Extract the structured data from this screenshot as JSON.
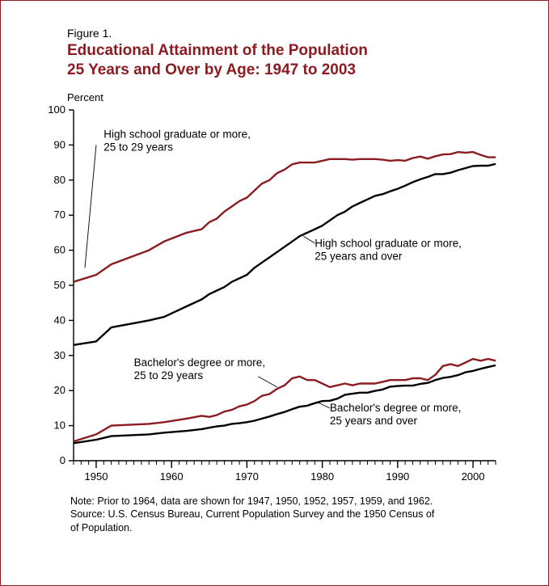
{
  "figure_label": "Figure 1.",
  "title_line1": "Educational Attainment of the Population",
  "title_line2": "25 Years and Over by Age:  1947 to 2003",
  "y_axis_label": "Percent",
  "note_line1": "Note:  Prior to 1964, data are shown for 1947, 1950, 1952, 1957, 1959, and 1962.",
  "note_line2": "Source:  U.S. Census Bureau, Current Population Survey and the 1950 Census of",
  "note_line3": "of Population.",
  "chart": {
    "type": "line",
    "background_color": "#ffffff",
    "frame_border_color": "#8a1c22",
    "axis_color": "#000000",
    "axis_line_width": 1.4,
    "label_fontsize": 13.5,
    "tick_fontsize": 13,
    "title_color": "#8a1c22",
    "title_fontsize": 19,
    "xlim": [
      1947,
      2003
    ],
    "ylim": [
      0,
      100
    ],
    "yticks": [
      0,
      10,
      20,
      30,
      40,
      50,
      60,
      70,
      80,
      90,
      100
    ],
    "xticks_major": [
      1950,
      1960,
      1970,
      1980,
      1990,
      2000
    ],
    "xticks_minor_step": 1,
    "series": [
      {
        "id": "hs_25_29",
        "label_line1": "High school graduate or more,",
        "label_line2": "25 to 29 years",
        "color": "#8a1c22",
        "line_width": 2.4,
        "label_pos": {
          "x": 1951,
          "y": 92
        },
        "leader": {
          "from": {
            "x": 1950,
            "y": 90
          },
          "to": {
            "x": 1948.5,
            "y": 55
          }
        },
        "data": [
          {
            "x": 1947,
            "y": 51
          },
          {
            "x": 1950,
            "y": 53
          },
          {
            "x": 1952,
            "y": 56
          },
          {
            "x": 1957,
            "y": 60
          },
          {
            "x": 1959,
            "y": 62.5
          },
          {
            "x": 1962,
            "y": 65
          },
          {
            "x": 1964,
            "y": 66
          },
          {
            "x": 1965,
            "y": 68
          },
          {
            "x": 1966,
            "y": 69
          },
          {
            "x": 1967,
            "y": 71
          },
          {
            "x": 1968,
            "y": 72.5
          },
          {
            "x": 1969,
            "y": 74
          },
          {
            "x": 1970,
            "y": 75
          },
          {
            "x": 1971,
            "y": 77
          },
          {
            "x": 1972,
            "y": 79
          },
          {
            "x": 1973,
            "y": 80
          },
          {
            "x": 1974,
            "y": 82
          },
          {
            "x": 1975,
            "y": 83
          },
          {
            "x": 1976,
            "y": 84.5
          },
          {
            "x": 1977,
            "y": 85
          },
          {
            "x": 1978,
            "y": 85
          },
          {
            "x": 1979,
            "y": 85
          },
          {
            "x": 1980,
            "y": 85.5
          },
          {
            "x": 1981,
            "y": 86
          },
          {
            "x": 1982,
            "y": 86
          },
          {
            "x": 1983,
            "y": 86
          },
          {
            "x": 1984,
            "y": 85.8
          },
          {
            "x": 1985,
            "y": 86
          },
          {
            "x": 1986,
            "y": 86
          },
          {
            "x": 1987,
            "y": 86
          },
          {
            "x": 1988,
            "y": 85.8
          },
          {
            "x": 1989,
            "y": 85.5
          },
          {
            "x": 1990,
            "y": 85.7
          },
          {
            "x": 1991,
            "y": 85.5
          },
          {
            "x": 1992,
            "y": 86.3
          },
          {
            "x": 1993,
            "y": 86.7
          },
          {
            "x": 1994,
            "y": 86.1
          },
          {
            "x": 1995,
            "y": 86.8
          },
          {
            "x": 1996,
            "y": 87.3
          },
          {
            "x": 1997,
            "y": 87.4
          },
          {
            "x": 1998,
            "y": 88
          },
          {
            "x": 1999,
            "y": 87.8
          },
          {
            "x": 2000,
            "y": 88
          },
          {
            "x": 2001,
            "y": 87.2
          },
          {
            "x": 2002,
            "y": 86.5
          },
          {
            "x": 2003,
            "y": 86.5
          }
        ]
      },
      {
        "id": "hs_25_over",
        "label_line1": "High school graduate or more,",
        "label_line2": "25 years and over",
        "color": "#000000",
        "line_width": 2.4,
        "label_pos": {
          "x": 1979,
          "y": 61
        },
        "leader": {
          "from": {
            "x": 1979,
            "y": 62
          },
          "to": {
            "x": 1977.5,
            "y": 64
          }
        },
        "data": [
          {
            "x": 1947,
            "y": 33
          },
          {
            "x": 1950,
            "y": 34
          },
          {
            "x": 1952,
            "y": 38
          },
          {
            "x": 1957,
            "y": 40
          },
          {
            "x": 1959,
            "y": 41
          },
          {
            "x": 1962,
            "y": 44
          },
          {
            "x": 1964,
            "y": 46
          },
          {
            "x": 1965,
            "y": 47.5
          },
          {
            "x": 1966,
            "y": 48.5
          },
          {
            "x": 1967,
            "y": 49.5
          },
          {
            "x": 1968,
            "y": 51
          },
          {
            "x": 1969,
            "y": 52
          },
          {
            "x": 1970,
            "y": 53
          },
          {
            "x": 1971,
            "y": 55
          },
          {
            "x": 1972,
            "y": 56.5
          },
          {
            "x": 1973,
            "y": 58
          },
          {
            "x": 1974,
            "y": 59.5
          },
          {
            "x": 1975,
            "y": 61
          },
          {
            "x": 1976,
            "y": 62.5
          },
          {
            "x": 1977,
            "y": 64
          },
          {
            "x": 1978,
            "y": 65
          },
          {
            "x": 1979,
            "y": 66
          },
          {
            "x": 1980,
            "y": 67
          },
          {
            "x": 1981,
            "y": 68.5
          },
          {
            "x": 1982,
            "y": 70
          },
          {
            "x": 1983,
            "y": 71
          },
          {
            "x": 1984,
            "y": 72.5
          },
          {
            "x": 1985,
            "y": 73.5
          },
          {
            "x": 1986,
            "y": 74.5
          },
          {
            "x": 1987,
            "y": 75.5
          },
          {
            "x": 1988,
            "y": 76
          },
          {
            "x": 1989,
            "y": 76.8
          },
          {
            "x": 1990,
            "y": 77.5
          },
          {
            "x": 1991,
            "y": 78.4
          },
          {
            "x": 1992,
            "y": 79.4
          },
          {
            "x": 1993,
            "y": 80.2
          },
          {
            "x": 1994,
            "y": 80.9
          },
          {
            "x": 1995,
            "y": 81.7
          },
          {
            "x": 1996,
            "y": 81.7
          },
          {
            "x": 1997,
            "y": 82.1
          },
          {
            "x": 1998,
            "y": 82.8
          },
          {
            "x": 1999,
            "y": 83.4
          },
          {
            "x": 2000,
            "y": 84
          },
          {
            "x": 2001,
            "y": 84.1
          },
          {
            "x": 2002,
            "y": 84.1
          },
          {
            "x": 2003,
            "y": 84.6
          }
        ]
      },
      {
        "id": "ba_25_29",
        "label_line1": "Bachelor's degree or more,",
        "label_line2": "25 to 29 years",
        "color": "#8a1c22",
        "line_width": 2.4,
        "label_pos": {
          "x": 1955,
          "y": 27
        },
        "leader": {
          "from": {
            "x": 1971.5,
            "y": 24
          },
          "to": {
            "x": 1974,
            "y": 21
          }
        },
        "data": [
          {
            "x": 1947,
            "y": 5.5
          },
          {
            "x": 1950,
            "y": 7.5
          },
          {
            "x": 1952,
            "y": 10
          },
          {
            "x": 1957,
            "y": 10.5
          },
          {
            "x": 1959,
            "y": 11
          },
          {
            "x": 1962,
            "y": 12
          },
          {
            "x": 1964,
            "y": 12.8
          },
          {
            "x": 1965,
            "y": 12.5
          },
          {
            "x": 1966,
            "y": 13
          },
          {
            "x": 1967,
            "y": 14
          },
          {
            "x": 1968,
            "y": 14.5
          },
          {
            "x": 1969,
            "y": 15.5
          },
          {
            "x": 1970,
            "y": 16
          },
          {
            "x": 1971,
            "y": 17
          },
          {
            "x": 1972,
            "y": 18.5
          },
          {
            "x": 1973,
            "y": 19
          },
          {
            "x": 1974,
            "y": 20.5
          },
          {
            "x": 1975,
            "y": 21.5
          },
          {
            "x": 1976,
            "y": 23.5
          },
          {
            "x": 1977,
            "y": 24
          },
          {
            "x": 1978,
            "y": 23
          },
          {
            "x": 1979,
            "y": 23
          },
          {
            "x": 1980,
            "y": 22
          },
          {
            "x": 1981,
            "y": 21
          },
          {
            "x": 1982,
            "y": 21.5
          },
          {
            "x": 1983,
            "y": 22
          },
          {
            "x": 1984,
            "y": 21.5
          },
          {
            "x": 1985,
            "y": 22
          },
          {
            "x": 1986,
            "y": 22
          },
          {
            "x": 1987,
            "y": 22
          },
          {
            "x": 1988,
            "y": 22.5
          },
          {
            "x": 1989,
            "y": 23
          },
          {
            "x": 1990,
            "y": 23
          },
          {
            "x": 1991,
            "y": 23
          },
          {
            "x": 1992,
            "y": 23.5
          },
          {
            "x": 1993,
            "y": 23.5
          },
          {
            "x": 1994,
            "y": 23
          },
          {
            "x": 1995,
            "y": 24.5
          },
          {
            "x": 1996,
            "y": 27
          },
          {
            "x": 1997,
            "y": 27.5
          },
          {
            "x": 1998,
            "y": 27
          },
          {
            "x": 1999,
            "y": 28
          },
          {
            "x": 2000,
            "y": 29
          },
          {
            "x": 2001,
            "y": 28.5
          },
          {
            "x": 2002,
            "y": 29
          },
          {
            "x": 2003,
            "y": 28.5
          }
        ]
      },
      {
        "id": "ba_25_over",
        "label_line1": "Bachelor's degree or more,",
        "label_line2": "25 years and over",
        "color": "#000000",
        "line_width": 2.4,
        "label_pos": {
          "x": 1981,
          "y": 14
        },
        "leader": {
          "from": {
            "x": 1981,
            "y": 15
          },
          "to": {
            "x": 1979.5,
            "y": 16.5
          }
        },
        "data": [
          {
            "x": 1947,
            "y": 5
          },
          {
            "x": 1950,
            "y": 6
          },
          {
            "x": 1952,
            "y": 7
          },
          {
            "x": 1957,
            "y": 7.5
          },
          {
            "x": 1959,
            "y": 8
          },
          {
            "x": 1962,
            "y": 8.5
          },
          {
            "x": 1964,
            "y": 9
          },
          {
            "x": 1965,
            "y": 9.4
          },
          {
            "x": 1966,
            "y": 9.8
          },
          {
            "x": 1967,
            "y": 10
          },
          {
            "x": 1968,
            "y": 10.5
          },
          {
            "x": 1969,
            "y": 10.7
          },
          {
            "x": 1970,
            "y": 11
          },
          {
            "x": 1971,
            "y": 11.4
          },
          {
            "x": 1972,
            "y": 12
          },
          {
            "x": 1973,
            "y": 12.6
          },
          {
            "x": 1974,
            "y": 13.3
          },
          {
            "x": 1975,
            "y": 13.9
          },
          {
            "x": 1976,
            "y": 14.7
          },
          {
            "x": 1977,
            "y": 15.4
          },
          {
            "x": 1978,
            "y": 15.7
          },
          {
            "x": 1979,
            "y": 16.4
          },
          {
            "x": 1980,
            "y": 17
          },
          {
            "x": 1981,
            "y": 17.1
          },
          {
            "x": 1982,
            "y": 17.7
          },
          {
            "x": 1983,
            "y": 18.8
          },
          {
            "x": 1984,
            "y": 19.1
          },
          {
            "x": 1985,
            "y": 19.4
          },
          {
            "x": 1986,
            "y": 19.4
          },
          {
            "x": 1987,
            "y": 19.9
          },
          {
            "x": 1988,
            "y": 20.3
          },
          {
            "x": 1989,
            "y": 21.1
          },
          {
            "x": 1990,
            "y": 21.3
          },
          {
            "x": 1991,
            "y": 21.4
          },
          {
            "x": 1992,
            "y": 21.4
          },
          {
            "x": 1993,
            "y": 21.9
          },
          {
            "x": 1994,
            "y": 22.2
          },
          {
            "x": 1995,
            "y": 23
          },
          {
            "x": 1996,
            "y": 23.6
          },
          {
            "x": 1997,
            "y": 23.9
          },
          {
            "x": 1998,
            "y": 24.4
          },
          {
            "x": 1999,
            "y": 25.2
          },
          {
            "x": 2000,
            "y": 25.6
          },
          {
            "x": 2001,
            "y": 26.2
          },
          {
            "x": 2002,
            "y": 26.7
          },
          {
            "x": 2003,
            "y": 27.2
          }
        ]
      }
    ]
  }
}
